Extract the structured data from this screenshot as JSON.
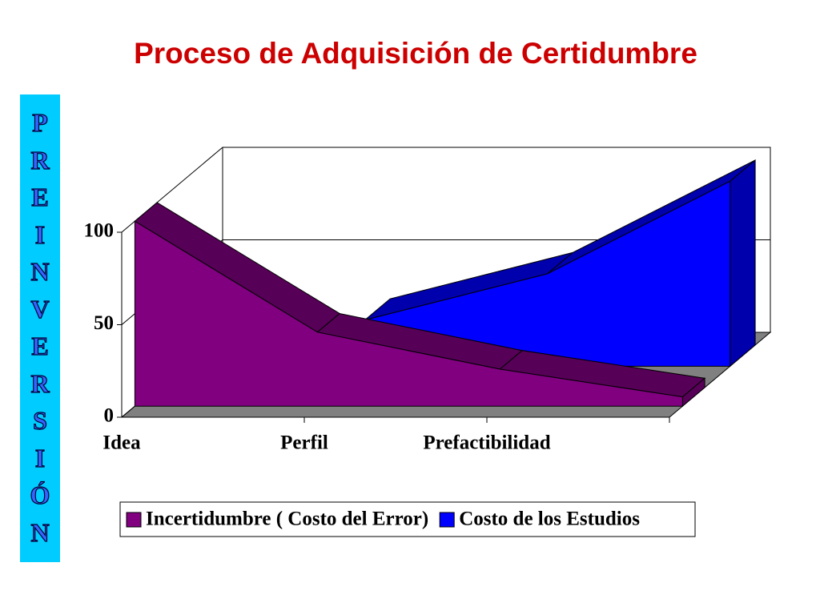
{
  "side_label": "PREINVERSIÓN",
  "chart_data": {
    "type": "area3d",
    "title": "Proceso de Adquisición de Certidumbre",
    "categories": [
      "Idea",
      "Perfil",
      "Prefactibilidad",
      null
    ],
    "series": [
      {
        "name": "Incertidumbre ( Costo del Error)",
        "color": "#800080",
        "values": [
          100,
          40,
          20,
          5
        ]
      },
      {
        "name": "Costo de los Estudios",
        "color": "#0000ff",
        "values": [
          null,
          25,
          50,
          100
        ]
      }
    ],
    "ylim": [
      0,
      100
    ],
    "yticks": [
      0,
      50,
      100
    ],
    "grid": true,
    "legend": "bottom"
  }
}
